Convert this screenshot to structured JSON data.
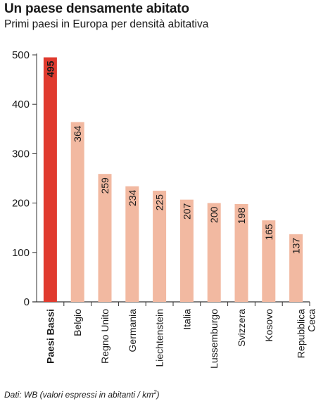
{
  "header": {
    "title": "Un paese densamente abitato",
    "subtitle": "Primi paesi in Europa per densità abitativa"
  },
  "footer": {
    "source_prefix": "Dati: WB (valori espressi in abitanti / km",
    "source_sup": "2",
    "source_suffix": ")"
  },
  "colors": {
    "highlight": "#e03a2e",
    "bar": "#f2b9a1",
    "axis": "#333333",
    "grid": "#999999"
  },
  "chart_data": {
    "type": "bar",
    "title": "Un paese densamente abitato",
    "subtitle": "Primi paesi in Europa per densità abitativa",
    "categories": [
      "Paesi Bassi",
      "Belgio",
      "Regno Unito",
      "Germania",
      "Liechtenstein",
      "Italia",
      "Lussemburgo",
      "Svizzera",
      "Kosovo",
      "Repubblica Ceca"
    ],
    "category_lines": [
      [
        "Paesi Bassi"
      ],
      [
        "Belgio"
      ],
      [
        "Regno Unito"
      ],
      [
        "Germania"
      ],
      [
        "Liechtenstein"
      ],
      [
        "Italia"
      ],
      [
        "Lussemburgo"
      ],
      [
        "Svizzera"
      ],
      [
        "Kosovo"
      ],
      [
        "Repubblica",
        "Ceca"
      ]
    ],
    "values": [
      495,
      364,
      259,
      234,
      225,
      207,
      200,
      198,
      165,
      137
    ],
    "highlight_index": 0,
    "ylim": [
      0,
      500
    ],
    "yticks": [
      0,
      100,
      200,
      300,
      400,
      500
    ],
    "xlabel": "",
    "ylabel": "",
    "grid": false,
    "legend": "none"
  }
}
